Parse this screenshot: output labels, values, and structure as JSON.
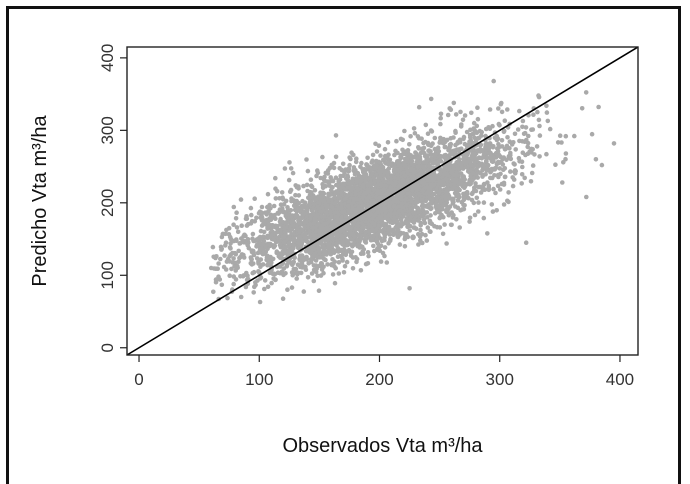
{
  "chart_data": {
    "type": "scatter",
    "xlabel": "Observados Vta m³/ha",
    "ylabel": "Predicho Vta m³/ha",
    "xlim": [
      -10,
      415
    ],
    "ylim": [
      -10,
      415
    ],
    "x_ticks": [
      "0",
      "100",
      "200",
      "300",
      "400"
    ],
    "y_ticks": [
      "0",
      "100",
      "200",
      "300",
      "400"
    ],
    "grid": false,
    "legend": "none",
    "point_color": "#a9a9a9",
    "line_color": "#000000",
    "reference_line": {
      "x": [
        -10,
        415
      ],
      "y": [
        -10,
        415
      ]
    },
    "cloud": {
      "n_points": 4200,
      "x_mean": 195,
      "x_sd": 55,
      "y_intercept": 78,
      "y_slope": 0.62,
      "y_noise_sd": 30
    },
    "outliers": [
      {
        "x": 295,
        "y": 368
      },
      {
        "x": 233,
        "y": 332
      },
      {
        "x": 395,
        "y": 282
      },
      {
        "x": 385,
        "y": 252
      },
      {
        "x": 352,
        "y": 228
      },
      {
        "x": 362,
        "y": 292
      },
      {
        "x": 380,
        "y": 260
      },
      {
        "x": 75,
        "y": 165
      },
      {
        "x": 60,
        "y": 110
      },
      {
        "x": 64,
        "y": 94
      },
      {
        "x": 85,
        "y": 70
      },
      {
        "x": 225,
        "y": 82
      },
      {
        "x": 322,
        "y": 145
      },
      {
        "x": 312,
        "y": 232
      },
      {
        "x": 340,
        "y": 313
      },
      {
        "x": 372,
        "y": 208
      },
      {
        "x": 355,
        "y": 268
      },
      {
        "x": 268,
        "y": 308
      }
    ]
  }
}
